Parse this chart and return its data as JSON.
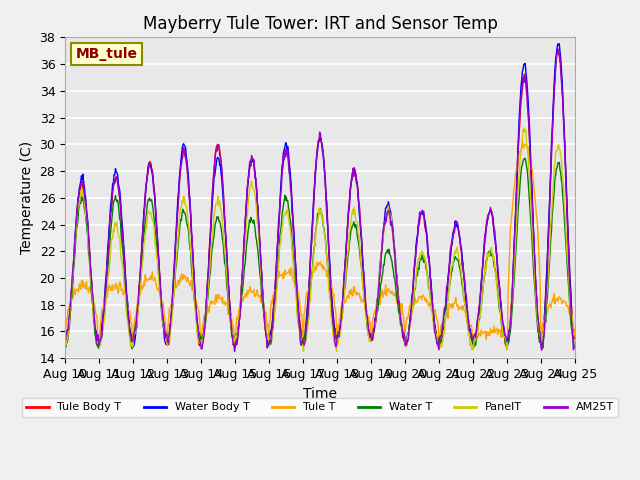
{
  "title": "Mayberry Tule Tower: IRT and Sensor Temp",
  "ylabel": "Temperature (C)",
  "xlabel": "Time",
  "ylim": [
    14,
    38
  ],
  "yticks": [
    14,
    16,
    18,
    20,
    22,
    24,
    26,
    28,
    30,
    32,
    34,
    36,
    38
  ],
  "date_labels": [
    "Aug 10",
    "Aug 11",
    "Aug 12",
    "Aug 13",
    "Aug 14",
    "Aug 15",
    "Aug 16",
    "Aug 17",
    "Aug 18",
    "Aug 19",
    "Aug 20",
    "Aug 21",
    "Aug 22",
    "Aug 23",
    "Aug 24",
    "Aug 25"
  ],
  "legend_label": "MB_tule",
  "legend_text_color": "#8B0000",
  "legend_bg_color": "#FFFFCC",
  "legend_edge_color": "#8B8B00",
  "series": [
    {
      "label": "Tule Body T",
      "color": "#FF0000"
    },
    {
      "label": "Water Body T",
      "color": "#0000FF"
    },
    {
      "label": "Tule T",
      "color": "#FFA500"
    },
    {
      "label": "Water T",
      "color": "#008000"
    },
    {
      "label": "PanelT",
      "color": "#CCCC00"
    },
    {
      "label": "AM25T",
      "color": "#9900CC"
    }
  ],
  "plot_bg_color": "#E8E8E8",
  "grid_color": "#FFFFFF",
  "title_fontsize": 12,
  "axis_fontsize": 10,
  "tick_fontsize": 9
}
